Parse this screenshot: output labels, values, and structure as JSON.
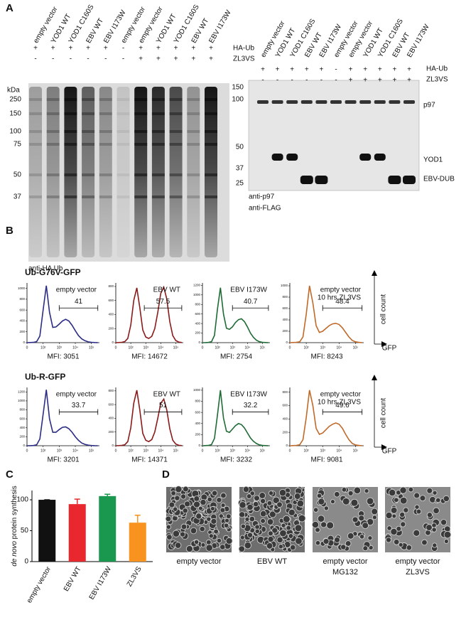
{
  "panel_labels": [
    "A",
    "B",
    "C",
    "D"
  ],
  "blot_left": {
    "lanes": [
      "empty vector",
      "YOD1 WT",
      "YOD1 C160S",
      "EBV WT",
      "EBV I173W",
      "empty vector",
      "empty vector",
      "YOD1 WT",
      "YOD1 C160S",
      "EBV WT",
      "EBV I173W"
    ],
    "rows": [
      {
        "name": "HA-Ub",
        "signs": [
          "+",
          "+",
          "+",
          "+",
          "+",
          "-",
          "+",
          "+",
          "+",
          "+",
          "+"
        ]
      },
      {
        "name": "ZL3VS",
        "signs": [
          "-",
          "-",
          "-",
          "-",
          "-",
          "-",
          "+",
          "+",
          "+",
          "+",
          "+"
        ]
      }
    ],
    "unit": "kDa",
    "markers": [
      250,
      150,
      100,
      75,
      50,
      37
    ],
    "caption": "anti-HA Ub"
  },
  "blot_right": {
    "lanes": [
      "empty vector",
      "YOD1 WT",
      "YOD1 C160S",
      "EBV WT",
      "EBV I173W",
      "empty vector",
      "empty vector",
      "YOD1 WT",
      "YOD1 C160S",
      "EBV WT",
      "EBV I173W"
    ],
    "rows": [
      {
        "name": "HA-Ub",
        "signs": [
          "+",
          "+",
          "+",
          "+",
          "+",
          "-",
          "+",
          "+",
          "+",
          "+",
          "+"
        ]
      },
      {
        "name": "ZL3VS",
        "signs": [
          "-",
          "-",
          "-",
          "-",
          "-",
          "-",
          "+",
          "+",
          "+",
          "+",
          "+"
        ]
      }
    ],
    "markers": [
      150,
      100,
      50,
      37,
      25
    ],
    "band_labels": [
      "p97",
      "YOD1",
      "EBV-DUB"
    ],
    "captions": [
      "anti-p97",
      "anti-FLAG"
    ]
  },
  "flow": {
    "row_titles": [
      "Ub-G76V-GFP",
      "Ub-R-GFP"
    ],
    "y_axis_label": "cell count",
    "x_axis_label": "GFP",
    "x": [
      1.0,
      1.2,
      1.4,
      1.6,
      1.8,
      2.0,
      2.2,
      2.4,
      2.6,
      2.8,
      3.0,
      3.2,
      3.4,
      3.6,
      3.8,
      4.0,
      4.2,
      4.4,
      4.6,
      4.8,
      5.0,
      5.2,
      5.4
    ],
    "xlim": [
      1,
      5.5
    ],
    "xticks": [
      {
        "value": 1,
        "label": "0"
      },
      {
        "value": 2,
        "label": "10²"
      },
      {
        "value": 3,
        "label": "10³"
      },
      {
        "value": 4,
        "label": "10⁴"
      },
      {
        "value": 5,
        "label": "10⁵"
      }
    ],
    "rows": [
      [
        {
          "label": [
            "empty vector"
          ],
          "color": "#2b2c84",
          "values": [
            0,
            2,
            5,
            20,
            120,
            600,
            1050,
            560,
            280,
            290,
            340,
            400,
            430,
            400,
            320,
            220,
            130,
            70,
            35,
            15,
            6,
            2,
            0
          ],
          "ylim": [
            0,
            1100
          ],
          "yticks": [
            0,
            200,
            400,
            600,
            800,
            1000
          ],
          "gate": [
            3,
            5.4
          ],
          "gate_label": 41,
          "mfi": "MFI: 3051"
        },
        {
          "label": [
            "EBV WT"
          ],
          "color": "#8b1a1a",
          "values": [
            0,
            2,
            5,
            15,
            60,
            250,
            600,
            780,
            500,
            180,
            80,
            60,
            90,
            200,
            430,
            700,
            790,
            620,
            300,
            100,
            30,
            8,
            2
          ],
          "ylim": [
            0,
            850
          ],
          "yticks": [
            0,
            200,
            400,
            600,
            800
          ],
          "gate": [
            2.9,
            5.4
          ],
          "gate_label": 57.5,
          "mfi": "MFI: 14672"
        },
        {
          "label": [
            "EBV I173W"
          ],
          "color": "#1f6b35",
          "values": [
            0,
            2,
            5,
            20,
            150,
            700,
            1150,
            600,
            300,
            280,
            330,
            420,
            480,
            500,
            440,
            330,
            200,
            110,
            50,
            20,
            8,
            3,
            0
          ],
          "ylim": [
            0,
            1250
          ],
          "yticks": [
            0,
            200,
            400,
            600,
            800,
            1000,
            1200
          ],
          "gate": [
            3,
            5.4
          ],
          "gate_label": 40.7,
          "mfi": "MFI: 2754"
        },
        {
          "label": [
            "empty vector",
            "10 hrs ZL3VS"
          ],
          "color": "#c06a2a",
          "values": [
            0,
            2,
            5,
            15,
            100,
            500,
            1000,
            700,
            300,
            180,
            200,
            250,
            300,
            330,
            340,
            320,
            260,
            180,
            100,
            40,
            15,
            5,
            0
          ],
          "ylim": [
            0,
            1050
          ],
          "yticks": [
            0,
            200,
            400,
            600,
            800,
            1000
          ],
          "gate": [
            3,
            5.4
          ],
          "gate_label": 48.4,
          "mfi": "MFI: 8243"
        }
      ],
      [
        {
          "label": [
            "empty vector"
          ],
          "color": "#2b2c84",
          "values": [
            0,
            2,
            5,
            20,
            150,
            700,
            1250,
            600,
            300,
            300,
            360,
            410,
            420,
            380,
            300,
            200,
            120,
            60,
            30,
            12,
            5,
            2,
            0
          ],
          "ylim": [
            0,
            1300
          ],
          "yticks": [
            0,
            200,
            400,
            600,
            800,
            1000,
            1200
          ],
          "gate": [
            3,
            5.4
          ],
          "gate_label": 33.7,
          "mfi": "MFI: 3201"
        },
        {
          "label": [
            "EBV WT"
          ],
          "color": "#8b1a1a",
          "values": [
            0,
            2,
            5,
            15,
            60,
            260,
            620,
            810,
            520,
            180,
            80,
            60,
            90,
            200,
            400,
            620,
            680,
            520,
            250,
            80,
            25,
            6,
            2
          ],
          "ylim": [
            0,
            850
          ],
          "yticks": [
            0,
            200,
            400,
            600,
            800
          ],
          "gate": [
            2.9,
            5.4
          ],
          "gate_label": 51,
          "mfi": "MFI: 14371"
        },
        {
          "label": [
            "EBV I173W"
          ],
          "color": "#1f6b35",
          "values": [
            0,
            2,
            5,
            20,
            130,
            550,
            1000,
            500,
            260,
            240,
            300,
            360,
            400,
            380,
            320,
            230,
            140,
            80,
            40,
            15,
            6,
            2,
            0
          ],
          "ylim": [
            0,
            1050
          ],
          "yticks": [
            0,
            200,
            400,
            600,
            800,
            1000
          ],
          "gate": [
            3,
            5.4
          ],
          "gate_label": 32.2,
          "mfi": "MFI: 3232"
        },
        {
          "label": [
            "empty vector",
            "10 hrs ZL3VS"
          ],
          "color": "#c06a2a",
          "values": [
            0,
            2,
            5,
            15,
            90,
            420,
            830,
            600,
            260,
            170,
            190,
            240,
            290,
            320,
            340,
            320,
            260,
            170,
            90,
            35,
            12,
            4,
            0
          ],
          "ylim": [
            0,
            870
          ],
          "yticks": [
            0,
            200,
            400,
            600,
            800
          ],
          "gate": [
            3,
            5.4
          ],
          "gate_label": 49.6,
          "mfi": "MFI: 9081"
        }
      ]
    ]
  },
  "chart_data": {
    "type": "bar",
    "ylabel_italic": "de novo",
    "ylabel": "protein synthesis",
    "categories": [
      "empty vector",
      "EBV WT",
      "EBV I173W",
      "ZL3VS"
    ],
    "values": [
      100,
      93,
      106,
      63
    ],
    "errors": [
      0,
      8,
      3,
      12
    ],
    "colors": [
      "#111111",
      "#e8282e",
      "#1a9850",
      "#f7931e"
    ],
    "ylim": [
      0,
      115
    ],
    "yticks": [
      0,
      50,
      100
    ]
  },
  "images": {
    "captions": [
      [
        "empty vector"
      ],
      [
        "EBV WT"
      ],
      [
        "empty vector",
        "MG132"
      ],
      [
        "empty vector",
        "ZL3VS"
      ]
    ]
  }
}
